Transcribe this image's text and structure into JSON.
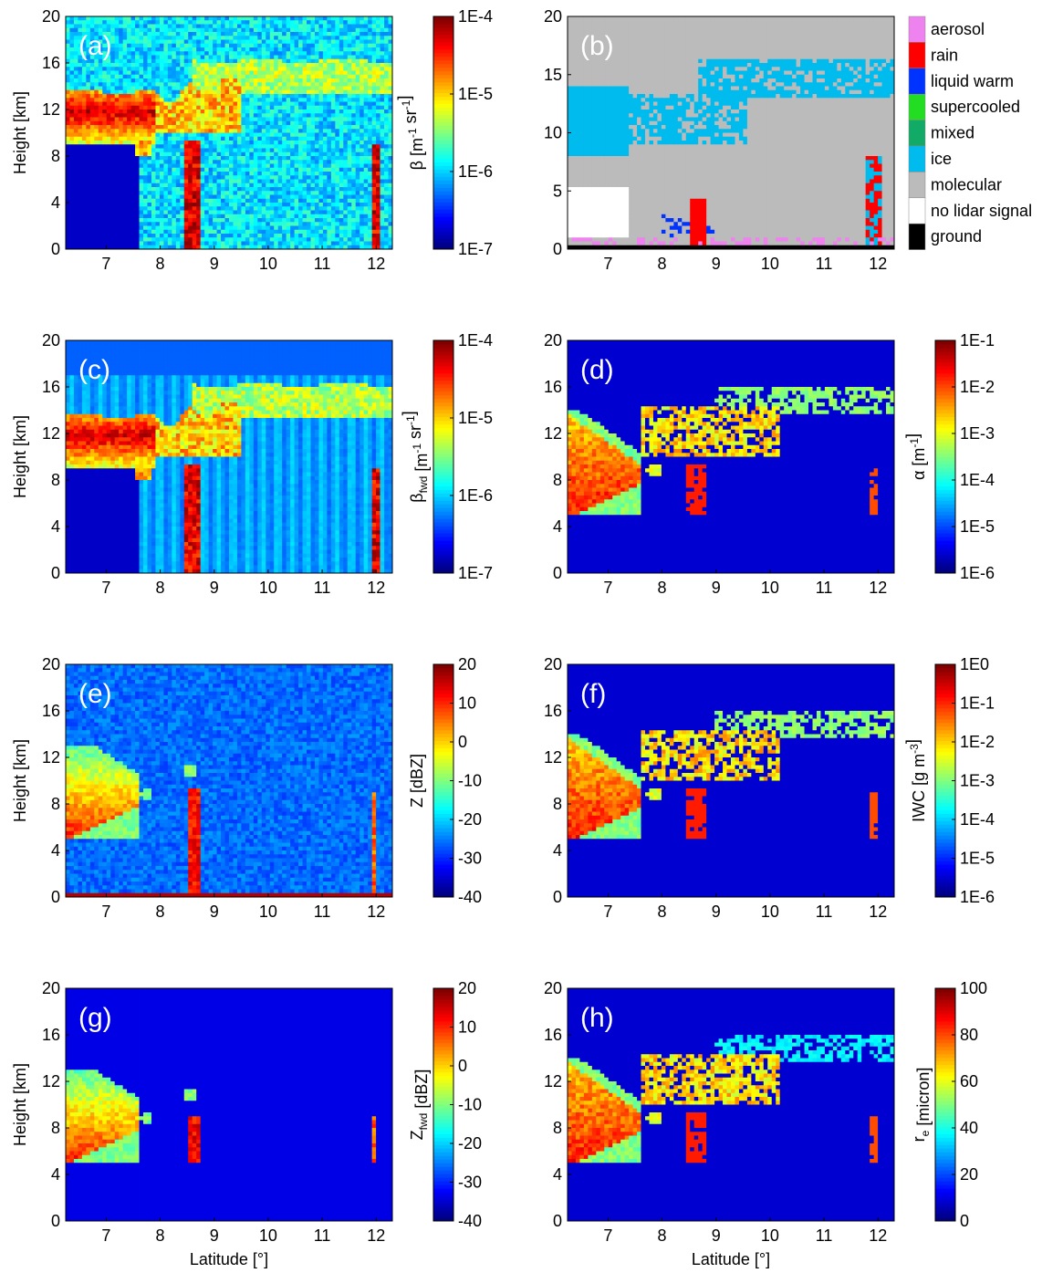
{
  "chart_data": [
    {
      "type": "heatmap",
      "panel_label": "(a)",
      "field": "backscatter",
      "ylabel": "Height [km]",
      "xlabel": "",
      "xticks": [
        "7",
        "8",
        "9",
        "10",
        "11",
        "12"
      ],
      "yticks": [
        "0",
        "4",
        "8",
        "12",
        "16",
        "20"
      ],
      "xlim": [
        6.25,
        12.3
      ],
      "ylim": [
        0,
        20
      ],
      "colorbar": {
        "label_parts": [
          "β [m",
          "-1",
          " sr",
          "-1",
          "]"
        ],
        "ticks": [
          "1E-7",
          "1E-6",
          "1E-5",
          "1E-4"
        ],
        "colormap": "jet"
      }
    },
    {
      "type": "heatmap",
      "panel_label": "(b)",
      "field": "classification",
      "ylabel": "",
      "xlabel": "",
      "xticks": [
        "7",
        "8",
        "9",
        "10",
        "11",
        "12"
      ],
      "yticks": [
        "0",
        "5",
        "10",
        "15",
        "20"
      ],
      "xlim": [
        6.25,
        12.3
      ],
      "ylim": [
        0,
        20
      ],
      "legend": [
        {
          "label": "aerosol",
          "color": "#ee82ee"
        },
        {
          "label": "rain",
          "color": "#ff0000"
        },
        {
          "label": "liquid warm",
          "color": "#0033ff"
        },
        {
          "label": "supercooled",
          "color": "#22dd22"
        },
        {
          "label": "mixed",
          "color": "#11aa66"
        },
        {
          "label": "ice",
          "color": "#00bbee"
        },
        {
          "label": "molecular",
          "color": "#bbbbbb"
        },
        {
          "label": "no lidar signal",
          "color": "#ffffff"
        },
        {
          "label": "ground",
          "color": "#000000"
        }
      ]
    },
    {
      "type": "heatmap",
      "panel_label": "(c)",
      "field": "backscatter_fwd",
      "ylabel": "Height [km]",
      "xlabel": "",
      "xticks": [
        "7",
        "8",
        "9",
        "10",
        "11",
        "12"
      ],
      "yticks": [
        "0",
        "4",
        "8",
        "12",
        "16",
        "20"
      ],
      "xlim": [
        6.25,
        12.3
      ],
      "ylim": [
        0,
        20
      ],
      "colorbar": {
        "label_parts": [
          "β",
          "fwd",
          " [m",
          "-1",
          " sr",
          "-1",
          "]"
        ],
        "ticks": [
          "1E-7",
          "1E-6",
          "1E-5",
          "1E-4"
        ],
        "colormap": "jet"
      }
    },
    {
      "type": "heatmap",
      "panel_label": "(d)",
      "field": "extinction",
      "ylabel": "",
      "xlabel": "",
      "xticks": [
        "7",
        "8",
        "9",
        "10",
        "11",
        "12"
      ],
      "yticks": [
        "0",
        "4",
        "8",
        "12",
        "16",
        "20"
      ],
      "xlim": [
        6.25,
        12.3
      ],
      "ylim": [
        0,
        20
      ],
      "colorbar": {
        "label_parts": [
          "α [m",
          "-1",
          "]"
        ],
        "ticks": [
          "1E-6",
          "1E-5",
          "1E-4",
          "1E-3",
          "1E-2",
          "1E-1"
        ],
        "colormap": "jet"
      }
    },
    {
      "type": "heatmap",
      "panel_label": "(e)",
      "field": "reflectivity",
      "ylabel": "Height [km]",
      "xlabel": "",
      "xticks": [
        "7",
        "8",
        "9",
        "10",
        "11",
        "12"
      ],
      "yticks": [
        "0",
        "4",
        "8",
        "12",
        "16",
        "20"
      ],
      "xlim": [
        6.25,
        12.3
      ],
      "ylim": [
        0,
        20
      ],
      "colorbar": {
        "label_parts": [
          "Z [dBZ]"
        ],
        "ticks": [
          "-40",
          "-30",
          "-20",
          "-10",
          "0",
          "10",
          "20"
        ],
        "colormap": "jet"
      }
    },
    {
      "type": "heatmap",
      "panel_label": "(f)",
      "field": "iwc",
      "ylabel": "",
      "xlabel": "",
      "xticks": [
        "7",
        "8",
        "9",
        "10",
        "11",
        "12"
      ],
      "yticks": [
        "0",
        "4",
        "8",
        "12",
        "16",
        "20"
      ],
      "xlim": [
        6.25,
        12.3
      ],
      "ylim": [
        0,
        20
      ],
      "colorbar": {
        "label_parts": [
          "IWC [g m",
          "-3",
          "]"
        ],
        "ticks": [
          "1E-6",
          "1E-5",
          "1E-4",
          "1E-3",
          "1E-2",
          "1E-1",
          "1E0"
        ],
        "colormap": "jet"
      }
    },
    {
      "type": "heatmap",
      "panel_label": "(g)",
      "field": "reflectivity_fwd",
      "ylabel": "Height [km]",
      "xlabel": "Latitude [°]",
      "xticks": [
        "7",
        "8",
        "9",
        "10",
        "11",
        "12"
      ],
      "yticks": [
        "0",
        "4",
        "8",
        "12",
        "16",
        "20"
      ],
      "xlim": [
        6.25,
        12.3
      ],
      "ylim": [
        0,
        20
      ],
      "colorbar": {
        "label_parts": [
          "Z",
          "fwd",
          " [dBZ]"
        ],
        "ticks": [
          "-40",
          "-30",
          "-20",
          "-10",
          "0",
          "10",
          "20"
        ],
        "colormap": "jet"
      }
    },
    {
      "type": "heatmap",
      "panel_label": "(h)",
      "field": "effective_radius",
      "ylabel": "",
      "xlabel": "Latitude [°]",
      "xticks": [
        "7",
        "8",
        "9",
        "10",
        "11",
        "12"
      ],
      "yticks": [
        "0",
        "4",
        "8",
        "12",
        "16",
        "20"
      ],
      "xlim": [
        6.25,
        12.3
      ],
      "ylim": [
        0,
        20
      ],
      "colorbar": {
        "label_parts": [
          "r",
          "e",
          " [micron]"
        ],
        "ticks": [
          "0",
          "20",
          "40",
          "60",
          "80",
          "100"
        ],
        "colormap": "jet"
      }
    }
  ]
}
